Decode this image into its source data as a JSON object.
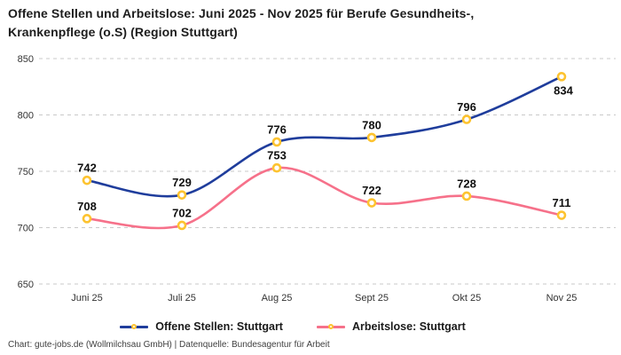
{
  "title": {
    "lines": [
      "Offene Stellen und Arbeitslose: Juni 2025 - Nov 2025 für Berufe Gesundheits-,",
      "Krankenpflege (o.S) (Region Stuttgart)"
    ]
  },
  "footer": "Chart: gute-jobs.de (Wollmilchsau GmbH) | Datenquelle: Bundesagentur für Arbeit",
  "colors": {
    "series_blue": "#1f3d9c",
    "series_pink": "#f6718a",
    "marker_ring": "#fdc330",
    "marker_fill": "#ffffff",
    "gridline": "#c9c9c9",
    "axis_text": "#333333",
    "value_text": "#111111"
  },
  "chart_data": {
    "type": "line",
    "categories": [
      "Juni 25",
      "Juli 25",
      "Aug 25",
      "Sept 25",
      "Okt 25",
      "Nov 25"
    ],
    "series": [
      {
        "name": "Offene Stellen: Stuttgart",
        "color_key": "series_blue",
        "values": [
          742,
          729,
          776,
          780,
          796,
          834
        ],
        "label_positions": [
          "above",
          "above",
          "above",
          "above",
          "above",
          "below"
        ]
      },
      {
        "name": "Arbeitslose: Stuttgart",
        "color_key": "series_pink",
        "values": [
          708,
          702,
          753,
          722,
          728,
          711
        ],
        "label_positions": [
          "above",
          "above",
          "above",
          "above",
          "above",
          "above"
        ]
      }
    ],
    "y_ticks": [
      850,
      800,
      750,
      700,
      650
    ],
    "ylim": [
      650,
      850
    ],
    "grid": "dashed-horizontal",
    "legend_position": "bottom",
    "marker": "open-circle-yellow",
    "smoothing": "spline"
  }
}
